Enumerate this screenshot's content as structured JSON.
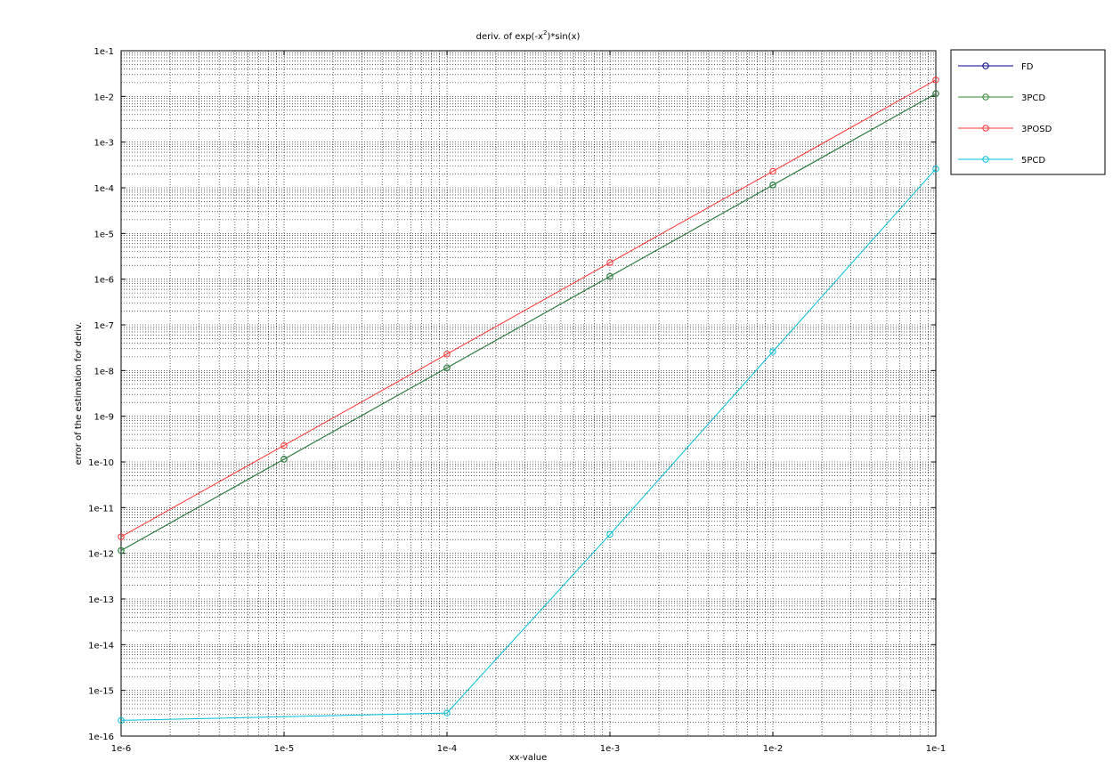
{
  "chart_data": {
    "type": "line",
    "title_prefix": "deriv. of exp(-x",
    "title_sup": "2",
    "title_suffix": ")*sin(x)",
    "xlabel": "xx-value",
    "ylabel": "error of the estimation for deriv.",
    "x_scale": "log",
    "y_scale": "log",
    "xlim": [
      1e-06,
      0.1
    ],
    "ylim": [
      1e-16,
      0.1
    ],
    "grid": true,
    "legend_position": "outside-right-top",
    "x_ticks": [
      {
        "value": 1e-06,
        "label": "1e-6"
      },
      {
        "value": 1e-05,
        "label": "1e-5"
      },
      {
        "value": 0.0001,
        "label": "1e-4"
      },
      {
        "value": 0.001,
        "label": "1e-3"
      },
      {
        "value": 0.01,
        "label": "1e-2"
      },
      {
        "value": 0.1,
        "label": "1e-1"
      }
    ],
    "y_ticks": [
      {
        "value": 0.1,
        "label": "1e-1"
      },
      {
        "value": 0.01,
        "label": "1e-2"
      },
      {
        "value": 0.001,
        "label": "1e-3"
      },
      {
        "value": 0.0001,
        "label": "1e-4"
      },
      {
        "value": 1e-05,
        "label": "1e-5"
      },
      {
        "value": 1e-06,
        "label": "1e-6"
      },
      {
        "value": 1e-07,
        "label": "1e-7"
      },
      {
        "value": 1e-08,
        "label": "1e-8"
      },
      {
        "value": 1e-09,
        "label": "1e-9"
      },
      {
        "value": 1e-10,
        "label": "1e-10"
      },
      {
        "value": 1e-11,
        "label": "1e-11"
      },
      {
        "value": 1e-12,
        "label": "1e-12"
      },
      {
        "value": 1e-13,
        "label": "1e-13"
      },
      {
        "value": 1e-14,
        "label": "1e-14"
      },
      {
        "value": 1e-15,
        "label": "1e-15"
      },
      {
        "value": 1e-16,
        "label": "1e-16"
      }
    ],
    "series": [
      {
        "name": "FD",
        "color": "#00008b",
        "x": [
          1e-06,
          1e-05,
          0.0001,
          0.001,
          0.01,
          0.1
        ],
        "y": [
          1.15e-12,
          1.15e-10,
          1.15e-08,
          1.15e-06,
          0.000115,
          0.0115
        ]
      },
      {
        "name": "3PCD",
        "color": "#2e8b2e",
        "x": [
          1e-06,
          1e-05,
          0.0001,
          0.001,
          0.01,
          0.1
        ],
        "y": [
          1.15e-12,
          1.15e-10,
          1.15e-08,
          1.15e-06,
          0.000115,
          0.0115
        ]
      },
      {
        "name": "3POSD",
        "color": "#ff3030",
        "x": [
          1e-06,
          1e-05,
          0.0001,
          0.001,
          0.01,
          0.1
        ],
        "y": [
          2.3e-12,
          2.3e-10,
          2.3e-08,
          2.3e-06,
          0.00023,
          0.023
        ]
      },
      {
        "name": "5PCD",
        "color": "#00bfd8",
        "x": [
          1e-06,
          0.0001,
          0.001,
          0.01,
          0.1
        ],
        "y": [
          2.2e-16,
          3.2e-16,
          2.6e-12,
          2.6e-08,
          0.00026
        ]
      }
    ]
  }
}
